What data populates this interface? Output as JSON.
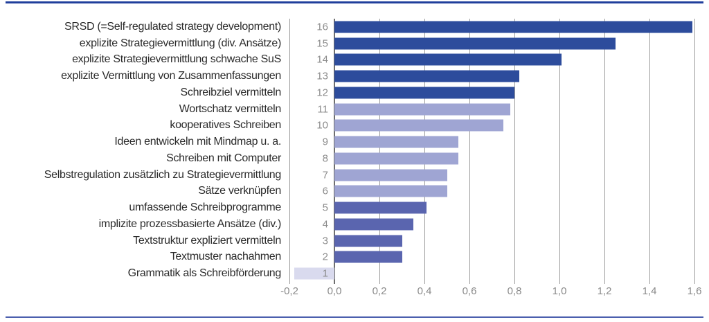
{
  "chart_data": {
    "type": "bar",
    "orientation": "horizontal",
    "title": "",
    "xlabel": "",
    "ylabel": "",
    "xlim": [
      -0.2,
      1.6
    ],
    "grid": true,
    "x_ticks": [
      {
        "label": "-0,2",
        "value": -0.2
      },
      {
        "label": "0,0",
        "value": 0.0
      },
      {
        "label": "0,2",
        "value": 0.2
      },
      {
        "label": "0,4",
        "value": 0.4
      },
      {
        "label": "0,6",
        "value": 0.6
      },
      {
        "label": "0,8",
        "value": 0.8
      },
      {
        "label": "1,0",
        "value": 1.0
      },
      {
        "label": "1,2",
        "value": 1.2
      },
      {
        "label": "1,4",
        "value": 1.4
      },
      {
        "label": "1,6",
        "value": 1.6
      }
    ],
    "rows": [
      {
        "rank": 16,
        "label": "SRSD (=Self-regulated strategy development)",
        "value": 1.59,
        "tier": "dark"
      },
      {
        "rank": 15,
        "label": "explizite Strategievermittlung (div. Ansätze)",
        "value": 1.25,
        "tier": "dark"
      },
      {
        "rank": 14,
        "label": "explizite Strategievermittlung schwache SuS",
        "value": 1.01,
        "tier": "dark"
      },
      {
        "rank": 13,
        "label": "explizite Vermittlung von Zusammenfassungen",
        "value": 0.82,
        "tier": "dark"
      },
      {
        "rank": 12,
        "label": "Schreibziel vermitteln",
        "value": 0.8,
        "tier": "dark"
      },
      {
        "rank": 11,
        "label": "Wortschatz vermitteln",
        "value": 0.78,
        "tier": "light"
      },
      {
        "rank": 10,
        "label": "kooperatives Schreiben",
        "value": 0.75,
        "tier": "light"
      },
      {
        "rank": 9,
        "label": "Ideen entwickeln mit Mindmap u. a.",
        "value": 0.55,
        "tier": "light"
      },
      {
        "rank": 8,
        "label": "Schreiben mit Computer",
        "value": 0.55,
        "tier": "light"
      },
      {
        "rank": 7,
        "label": "Selbstregulation zusätzlich zu Strategievermittlung",
        "value": 0.5,
        "tier": "light"
      },
      {
        "rank": 6,
        "label": "Sätze verknüpfen",
        "value": 0.5,
        "tier": "light"
      },
      {
        "rank": 5,
        "label": "umfassende Schreibprogramme",
        "value": 0.41,
        "tier": "medium"
      },
      {
        "rank": 4,
        "label": "implizite prozessbasierte Ansätze (div.)",
        "value": 0.35,
        "tier": "medium"
      },
      {
        "rank": 3,
        "label": "Textstruktur expliziert vermitteln",
        "value": 0.3,
        "tier": "medium"
      },
      {
        "rank": 2,
        "label": "Textmuster nachahmen",
        "value": 0.3,
        "tier": "medium"
      },
      {
        "rank": 1,
        "label": "Grammatik als Schreibförderung",
        "value": -0.18,
        "tier": "pale"
      }
    ]
  },
  "colors": {
    "tier_dark": "#2d4c9c",
    "tier_light": "#9fa5d3",
    "tier_medium": "#5a65af",
    "tier_pale": "#d9daee",
    "gridline": "#9b9b9b",
    "zeroline": "#6e6e6e",
    "category_text": "#2a2a2a",
    "muted_text": "#8c8c8c",
    "top_rule": "#203f9c",
    "bottom_rule": "#4c5fae"
  }
}
